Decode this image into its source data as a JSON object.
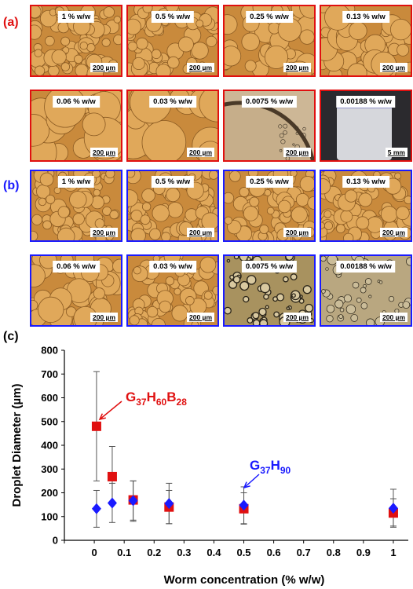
{
  "panels": {
    "a": {
      "label": "(a)",
      "color": "#e01010",
      "tiles": [
        {
          "conc": "1 % w/w",
          "scale": "200 µm",
          "style": "dense-small"
        },
        {
          "conc": "0.5 % w/w",
          "scale": "200 µm",
          "style": "dense-small"
        },
        {
          "conc": "0.25 % w/w",
          "scale": "200 µm",
          "style": "medium"
        },
        {
          "conc": "0.13 % w/w",
          "scale": "200 µm",
          "style": "medium"
        },
        {
          "conc": "0.06 % w/w",
          "scale": "200 µm",
          "style": "large"
        },
        {
          "conc": "0.03 % w/w",
          "scale": "200 µm",
          "style": "large"
        },
        {
          "conc": "0.0075 % w/w",
          "scale": "200 µm",
          "style": "single-huge"
        },
        {
          "conc": "0.00188 % w/w",
          "scale": "5 mm",
          "style": "vial"
        }
      ]
    },
    "b": {
      "label": "(b)",
      "color": "#1a1aff",
      "tiles": [
        {
          "conc": "1 % w/w",
          "scale": "200 µm",
          "style": "dense-small"
        },
        {
          "conc": "0.5 % w/w",
          "scale": "200 µm",
          "style": "dense-small"
        },
        {
          "conc": "0.25 % w/w",
          "scale": "200 µm",
          "style": "dense-small"
        },
        {
          "conc": "0.13 % w/w",
          "scale": "200 µm",
          "style": "dense-small"
        },
        {
          "conc": "0.06 % w/w",
          "scale": "200 µm",
          "style": "medium"
        },
        {
          "conc": "0.03 % w/w",
          "scale": "200 µm",
          "style": "dense-small"
        },
        {
          "conc": "0.0075 % w/w",
          "scale": "200 µm",
          "style": "sparse-dark"
        },
        {
          "conc": "0.00188 % w/w",
          "scale": "200 µm",
          "style": "sparse-light"
        }
      ]
    },
    "c": {
      "label": "(c)"
    }
  },
  "chart_data": {
    "type": "scatter",
    "xlabel": "Worm concentration (% w/w)",
    "ylabel": "Droplet Diameter (µm)",
    "xlim": [
      -0.1,
      1.05
    ],
    "ylim": [
      0,
      800
    ],
    "xticks": [
      "0",
      "0.1",
      "0.2",
      "0.3",
      "0.4",
      "0.5",
      "0.6",
      "0.7",
      "0.8",
      "0.9",
      "1"
    ],
    "yticks": [
      "0",
      "100",
      "200",
      "300",
      "400",
      "500",
      "600",
      "700",
      "800"
    ],
    "series": [
      {
        "name": "G37H60B28",
        "color": "#e01010",
        "marker": "square",
        "points": [
          {
            "x": 0.0075,
            "y": 480,
            "err_low": 250,
            "err_high": 710
          },
          {
            "x": 0.06,
            "y": 268,
            "err_low": 150,
            "err_high": 395
          },
          {
            "x": 0.13,
            "y": 170,
            "err_low": 85,
            "err_high": 250
          },
          {
            "x": 0.25,
            "y": 140,
            "err_low": 70,
            "err_high": 210
          },
          {
            "x": 0.5,
            "y": 133,
            "err_low": 70,
            "err_high": 200
          },
          {
            "x": 1.0,
            "y": 115,
            "err_low": 60,
            "err_high": 175
          }
        ]
      },
      {
        "name": "G37H90",
        "color": "#1a1aff",
        "marker": "diamond",
        "points": [
          {
            "x": 0.0075,
            "y": 133,
            "err_low": 55,
            "err_high": 210
          },
          {
            "x": 0.06,
            "y": 157,
            "err_low": 75,
            "err_high": 240
          },
          {
            "x": 0.13,
            "y": 167,
            "err_low": 80,
            "err_high": 250
          },
          {
            "x": 0.25,
            "y": 155,
            "err_low": 70,
            "err_high": 240
          },
          {
            "x": 0.5,
            "y": 148,
            "err_low": 68,
            "err_high": 225
          },
          {
            "x": 1.0,
            "y": 135,
            "err_low": 55,
            "err_high": 215
          }
        ]
      }
    ],
    "annotations": [
      {
        "series": "G37H60B28",
        "base": "G",
        "subs": [
          "37",
          "60",
          "28"
        ],
        "letters": [
          "H",
          "B"
        ],
        "color": "#e01010"
      },
      {
        "series": "G37H90",
        "base": "G",
        "subs": [
          "37",
          "90"
        ],
        "letters": [
          "H"
        ],
        "color": "#1a1aff"
      }
    ]
  }
}
